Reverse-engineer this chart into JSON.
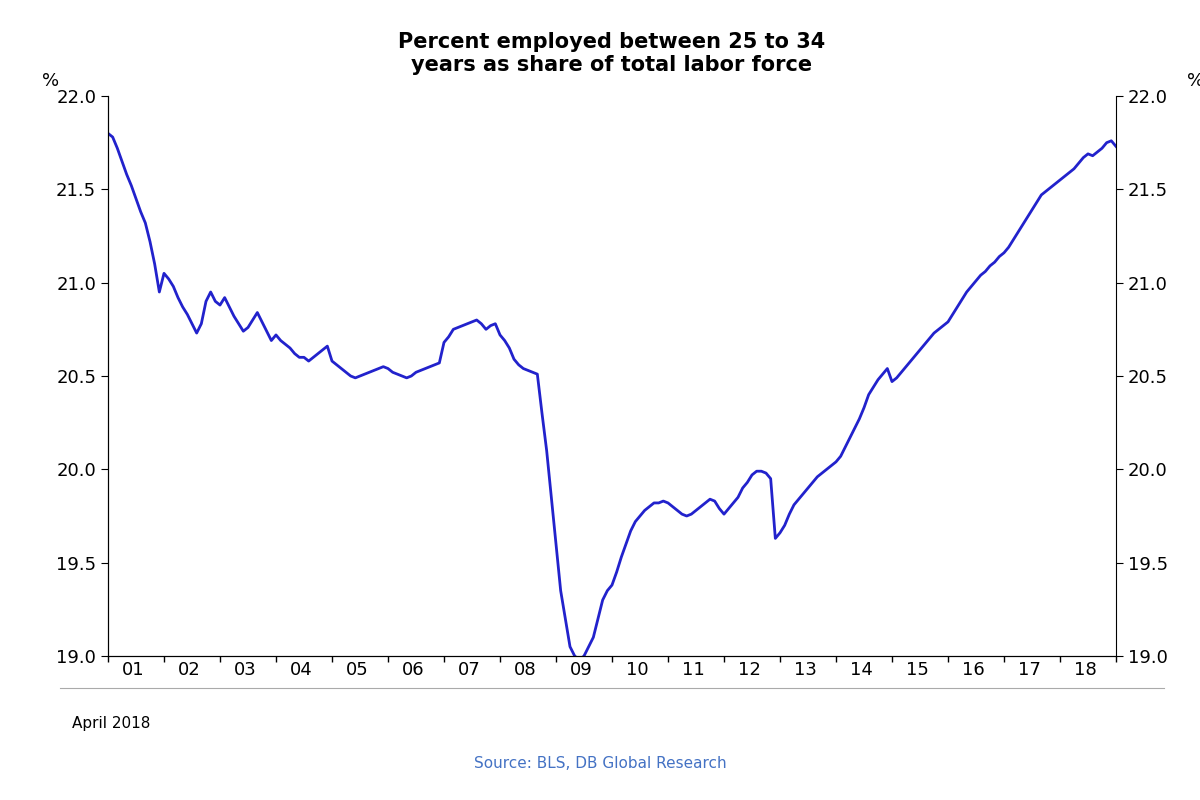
{
  "title_line1": "Percent employed between 25 to 34",
  "title_line2": "years as share of total labor force",
  "ylabel_left": "%",
  "ylabel_right": "%",
  "ylim": [
    19.0,
    22.0
  ],
  "yticks": [
    19.0,
    19.5,
    20.0,
    20.5,
    21.0,
    21.5,
    22.0
  ],
  "xtick_labels": [
    "01",
    "02",
    "03",
    "04",
    "05",
    "06",
    "07",
    "08",
    "09",
    "10",
    "11",
    "12",
    "13",
    "14",
    "15",
    "16",
    "17",
    "18"
  ],
  "source_text": "Source: BLS, DB Global Research",
  "footer_text": "April 2018",
  "line_color": "#2222cc",
  "background_color": "#ffffff",
  "values": [
    21.8,
    21.78,
    21.72,
    21.65,
    21.58,
    21.52,
    21.45,
    21.38,
    21.32,
    21.22,
    21.1,
    20.95,
    21.05,
    21.02,
    20.98,
    20.92,
    20.87,
    20.83,
    20.78,
    20.73,
    20.78,
    20.9,
    20.95,
    20.9,
    20.88,
    20.92,
    20.87,
    20.82,
    20.78,
    20.74,
    20.76,
    20.8,
    20.84,
    20.79,
    20.74,
    20.69,
    20.72,
    20.69,
    20.67,
    20.65,
    20.62,
    20.6,
    20.6,
    20.58,
    20.6,
    20.62,
    20.64,
    20.66,
    20.58,
    20.56,
    20.54,
    20.52,
    20.5,
    20.49,
    20.5,
    20.51,
    20.52,
    20.53,
    20.54,
    20.55,
    20.54,
    20.52,
    20.51,
    20.5,
    20.49,
    20.5,
    20.52,
    20.53,
    20.54,
    20.55,
    20.56,
    20.57,
    20.68,
    20.71,
    20.75,
    20.76,
    20.77,
    20.78,
    20.79,
    20.8,
    20.78,
    20.75,
    20.77,
    20.78,
    20.72,
    20.69,
    20.65,
    20.59,
    20.56,
    20.54,
    20.53,
    20.52,
    20.51,
    20.3,
    20.1,
    19.85,
    19.6,
    19.35,
    19.2,
    19.05,
    19.0,
    18.98,
    19.0,
    19.05,
    19.1,
    19.2,
    19.3,
    19.35,
    19.38,
    19.45,
    19.53,
    19.6,
    19.67,
    19.72,
    19.75,
    19.78,
    19.8,
    19.82,
    19.82,
    19.83,
    19.82,
    19.8,
    19.78,
    19.76,
    19.75,
    19.76,
    19.78,
    19.8,
    19.82,
    19.84,
    19.83,
    19.79,
    19.76,
    19.79,
    19.82,
    19.85,
    19.9,
    19.93,
    19.97,
    19.99,
    19.99,
    19.98,
    19.95,
    19.63,
    19.66,
    19.7,
    19.76,
    19.81,
    19.84,
    19.87,
    19.9,
    19.93,
    19.96,
    19.98,
    20.0,
    20.02,
    20.04,
    20.07,
    20.12,
    20.17,
    20.22,
    20.27,
    20.33,
    20.4,
    20.44,
    20.48,
    20.51,
    20.54,
    20.47,
    20.49,
    20.52,
    20.55,
    20.58,
    20.61,
    20.64,
    20.67,
    20.7,
    20.73,
    20.75,
    20.77,
    20.79,
    20.83,
    20.87,
    20.91,
    20.95,
    20.98,
    21.01,
    21.04,
    21.06,
    21.09,
    21.11,
    21.14,
    21.16,
    21.19,
    21.23,
    21.27,
    21.31,
    21.35,
    21.39,
    21.43,
    21.47,
    21.49,
    21.51,
    21.53,
    21.55,
    21.57,
    21.59,
    21.61,
    21.64,
    21.67,
    21.69,
    21.68,
    21.7,
    21.72,
    21.75,
    21.76,
    21.73
  ]
}
